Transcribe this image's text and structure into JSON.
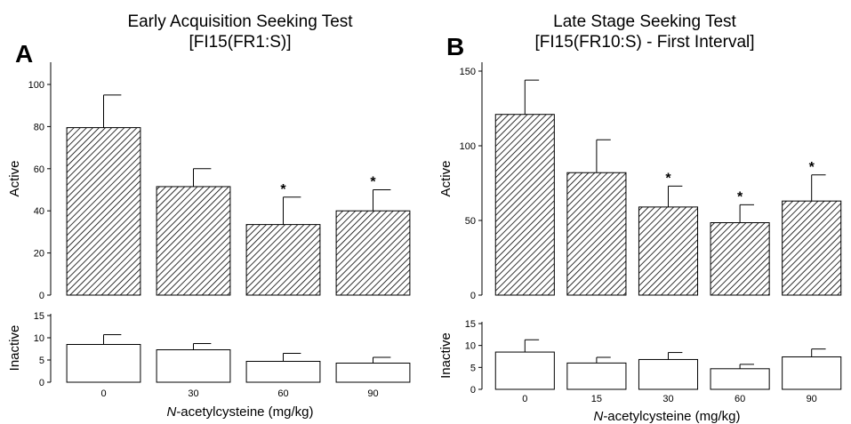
{
  "panels": [
    {
      "letter": "A",
      "title_line1": "Early Acquisition Seeking Test",
      "title_line2": "[FI15(FR1:S)]",
      "xlabel_italic": "N",
      "xlabel_rest": "-acetylcysteine (mg/kg)"
    },
    {
      "letter": "B",
      "title_line1": "Late Stage Seeking Test",
      "title_line2": "[FI15(FR10:S) - First Interval]",
      "xlabel_italic": "N",
      "xlabel_rest": "-acetylcysteine (mg/kg)"
    }
  ],
  "chart_data": [
    {
      "type": "bar",
      "panel": "A",
      "subplot": "active",
      "ylabel": "Active",
      "categories": [
        "0",
        "30",
        "60",
        "90"
      ],
      "values": [
        79.5,
        51.5,
        33.5,
        40
      ],
      "errors": [
        15.5,
        8.5,
        13,
        10
      ],
      "significant": [
        false,
        false,
        true,
        true
      ],
      "significance_marker": "*",
      "ylim": [
        0,
        110
      ],
      "yticks": [
        0,
        20,
        40,
        60,
        80,
        100
      ],
      "fill": "hatched"
    },
    {
      "type": "bar",
      "panel": "A",
      "subplot": "inactive",
      "ylabel": "Inactive",
      "categories": [
        "0",
        "30",
        "60",
        "90"
      ],
      "values": [
        8.5,
        7.3,
        4.7,
        4.3
      ],
      "errors": [
        2.2,
        1.4,
        1.8,
        1.3
      ],
      "ylim": [
        0,
        15
      ],
      "yticks": [
        0,
        5,
        10,
        15
      ],
      "fill": "white"
    },
    {
      "type": "bar",
      "panel": "B",
      "subplot": "active",
      "ylabel": "Active",
      "categories": [
        "0",
        "15",
        "30",
        "60",
        "90"
      ],
      "values": [
        121,
        82,
        59,
        48.5,
        63
      ],
      "errors": [
        23,
        22,
        14,
        12,
        17.5
      ],
      "significant": [
        false,
        false,
        true,
        true,
        true
      ],
      "significance_marker": "*",
      "ylim": [
        0,
        150
      ],
      "yticks": [
        0,
        50,
        100,
        150
      ],
      "fill": "hatched"
    },
    {
      "type": "bar",
      "panel": "B",
      "subplot": "inactive",
      "ylabel": "Inactive",
      "categories": [
        "0",
        "15",
        "30",
        "60",
        "90"
      ],
      "values": [
        8.5,
        6,
        6.8,
        4.7,
        7.4
      ],
      "errors": [
        2.8,
        1.3,
        1.6,
        1,
        1.8
      ],
      "ylim": [
        0,
        15
      ],
      "yticks": [
        0,
        5,
        10,
        15
      ],
      "fill": "white"
    }
  ]
}
